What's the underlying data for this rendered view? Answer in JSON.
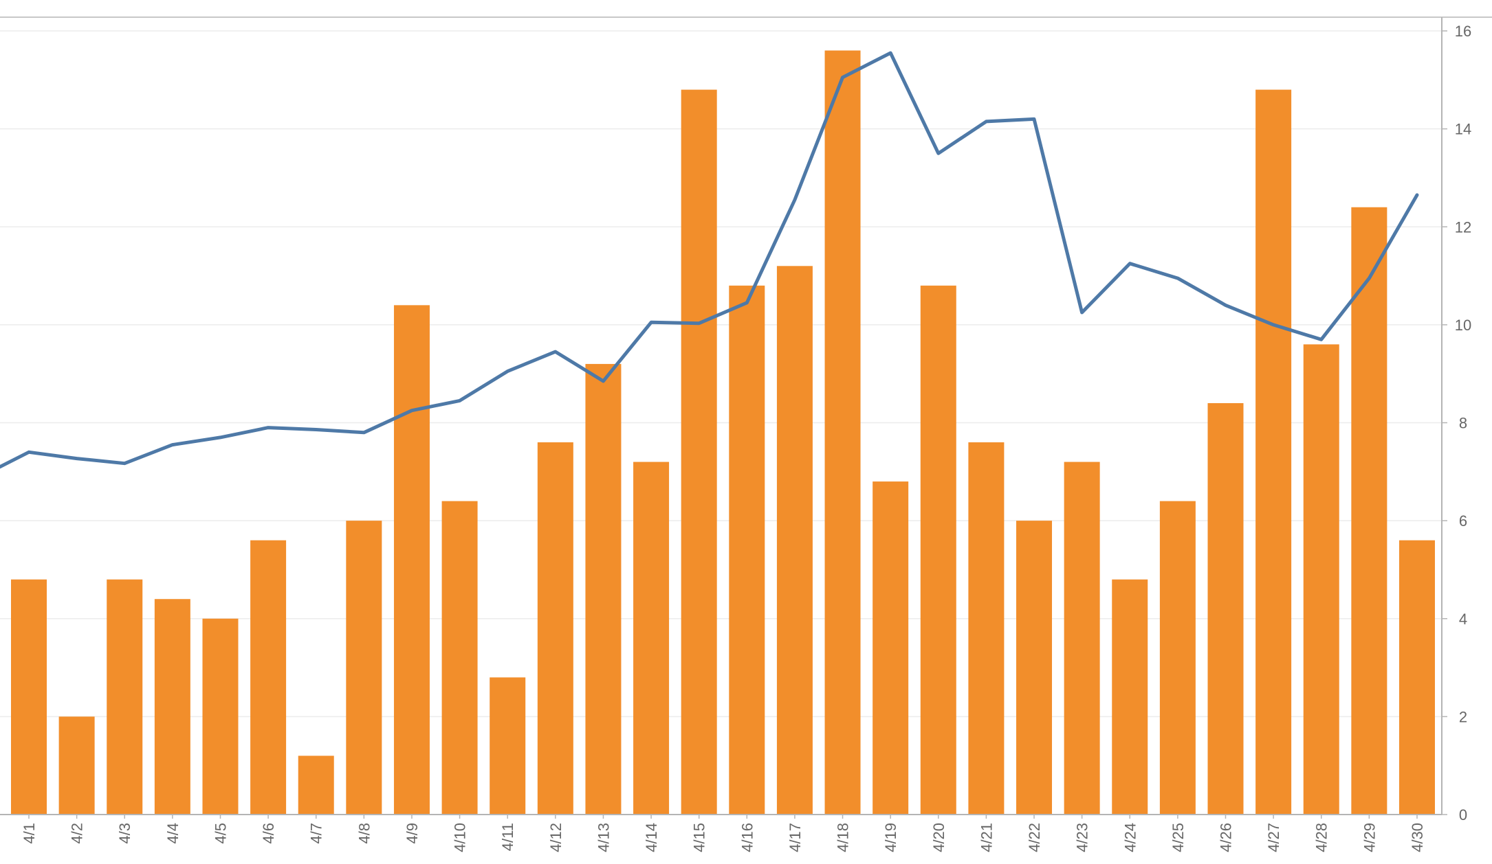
{
  "chart_data": {
    "type": "bar",
    "title": "",
    "xlabel": "",
    "ylabel": "",
    "ylim": [
      0,
      16
    ],
    "grid": true,
    "y_axis_side": "right",
    "y_ticks": [
      "0",
      "2",
      "4",
      "6",
      "8",
      "10",
      "12",
      "14",
      "16"
    ],
    "categories": [
      "4/1",
      "4/2",
      "4/3",
      "4/4",
      "4/5",
      "4/6",
      "4/7",
      "4/8",
      "4/9",
      "4/10",
      "4/11",
      "4/12",
      "4/13",
      "4/14",
      "4/15",
      "4/16",
      "4/17",
      "4/18",
      "4/19",
      "4/20",
      "4/21",
      "4/22",
      "4/23",
      "4/24",
      "4/25",
      "4/26",
      "4/27",
      "4/28",
      "4/29",
      "4/30"
    ],
    "series": [
      {
        "type": "bar",
        "color": "#f28e2b",
        "values": [
          4.8,
          2.0,
          4.8,
          4.4,
          4.0,
          5.6,
          1.2,
          6.0,
          10.4,
          6.4,
          2.8,
          7.6,
          9.2,
          7.2,
          14.8,
          10.8,
          11.2,
          15.6,
          6.8,
          10.8,
          7.6,
          6.0,
          7.2,
          4.8,
          6.4,
          8.4,
          14.8,
          9.6,
          12.4,
          5.6
        ]
      },
      {
        "type": "line",
        "color": "#4e79a7",
        "start_value": 7.1,
        "values": [
          7.4,
          7.27,
          7.17,
          7.55,
          7.7,
          7.9,
          7.86,
          7.8,
          8.25,
          8.45,
          9.05,
          9.45,
          8.85,
          10.05,
          10.03,
          10.45,
          12.55,
          15.05,
          15.55,
          13.5,
          14.15,
          14.2,
          10.25,
          11.25,
          10.95,
          10.4,
          10.0,
          9.7,
          10.95,
          12.65
        ]
      }
    ]
  }
}
